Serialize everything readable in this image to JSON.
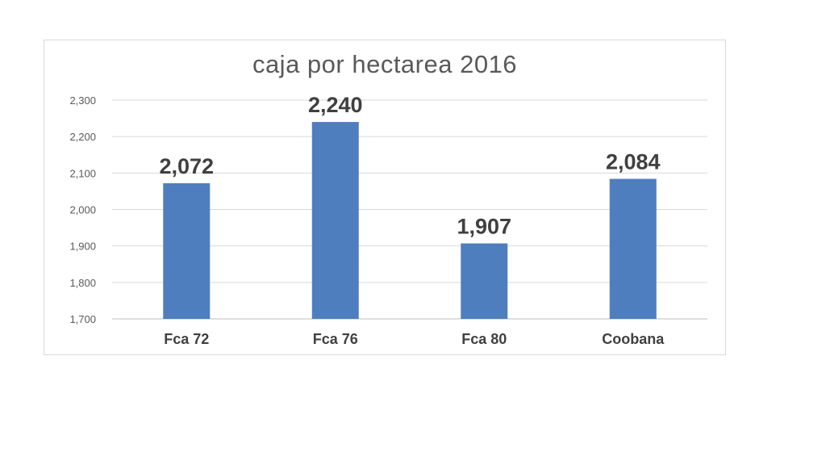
{
  "chart_data": {
    "type": "bar",
    "title": "caja por hectarea 2016",
    "categories": [
      "Fca 72",
      "Fca 76",
      "Fca 80",
      "Coobana"
    ],
    "values": [
      2072,
      2240,
      1907,
      2084
    ],
    "value_labels": [
      "2,072",
      "2,240",
      "1,907",
      "2,084"
    ],
    "yticks": [
      1700,
      1800,
      1900,
      2000,
      2100,
      2200,
      2300
    ],
    "ytick_labels": [
      "1,700",
      "1,800",
      "1,900",
      "2,000",
      "2,100",
      "2,200",
      "2,300"
    ],
    "ylim": [
      1700,
      2300
    ],
    "grid": true,
    "legend": "none",
    "colors": {
      "bar": "#4f7ebf",
      "grid": "#d9d9d9",
      "axis": "#bfbfbf"
    }
  }
}
